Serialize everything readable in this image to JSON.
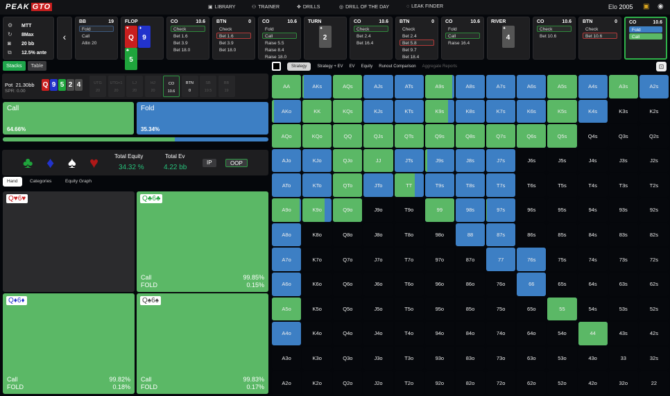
{
  "header": {
    "logo_a": "PEAK",
    "logo_b": "GTO",
    "nav": [
      "LIBRARY",
      "TRAINER",
      "DRILLS",
      "DRILL OF THE DAY",
      "LEAK FINDER"
    ],
    "elo_label": "Elo",
    "elo_value": "2005"
  },
  "game_info": [
    "MTT",
    "8Max",
    "20 bb",
    "12.5% ante"
  ],
  "history": [
    {
      "pos": "BB",
      "stack": "19",
      "opts": [
        [
          "Fold",
          "sb"
        ],
        [
          "Call",
          ""
        ],
        [
          "Allin 20",
          ""
        ]
      ]
    },
    {
      "street": "FLOP",
      "cards": [
        [
          "Q",
          "♥",
          "#c81e1e"
        ],
        [
          "9",
          "♦",
          "#2233cc"
        ],
        [
          "5",
          "♣",
          "#1fa53c"
        ]
      ]
    },
    {
      "pos": "CO",
      "stack": "10.6",
      "opts": [
        [
          "Check",
          "sg"
        ],
        [
          "Bet 1.6",
          ""
        ],
        [
          "Bet 3.9",
          ""
        ],
        [
          "Bet 18.0",
          ""
        ]
      ]
    },
    {
      "pos": "BTN",
      "stack": "0",
      "opts": [
        [
          "Check",
          ""
        ],
        [
          "Bet 1.6",
          "sr"
        ],
        [
          "Bet 3.9",
          ""
        ],
        [
          "Bet 18.0",
          ""
        ]
      ]
    },
    {
      "pos": "CO",
      "stack": "10.6",
      "opts": [
        [
          "Fold",
          ""
        ],
        [
          "Call",
          "sg"
        ],
        [
          "Raise 5.5",
          ""
        ],
        [
          "Raise 8.4",
          ""
        ],
        [
          "Raise 18.0",
          ""
        ]
      ]
    },
    {
      "street": "TURN",
      "cards": [
        [
          "2",
          "♠",
          "#555"
        ]
      ]
    },
    {
      "pos": "CO",
      "stack": "10.6",
      "opts": [
        [
          "Check",
          "sg"
        ],
        [
          "Bet 2.4",
          ""
        ],
        [
          "Bet 16.4",
          ""
        ]
      ]
    },
    {
      "pos": "BTN",
      "stack": "0",
      "opts": [
        [
          "Check",
          ""
        ],
        [
          "Bet 2.4",
          ""
        ],
        [
          "Bet 5.8",
          "sr"
        ],
        [
          "Bet 9.7",
          ""
        ],
        [
          "Bet 18.4",
          ""
        ]
      ]
    },
    {
      "pos": "CO",
      "stack": "10.6",
      "opts": [
        [
          "Fold",
          ""
        ],
        [
          "Call",
          "sg"
        ],
        [
          "Raise 16.4",
          ""
        ]
      ]
    },
    {
      "street": "RIVER",
      "cards": [
        [
          "4",
          "♠",
          "#555"
        ]
      ]
    },
    {
      "pos": "CO",
      "stack": "10.6",
      "opts": [
        [
          "Check",
          "sg"
        ],
        [
          "Bet 10.6",
          ""
        ]
      ]
    },
    {
      "pos": "BTN",
      "stack": "0",
      "opts": [
        [
          "Check",
          ""
        ],
        [
          "Bet 10.6",
          "sr"
        ]
      ]
    },
    {
      "pos": "CO",
      "stack": "10.6",
      "active": true,
      "opts": [
        [
          "Fold",
          "fb"
        ],
        [
          "Call",
          "fg"
        ]
      ]
    }
  ],
  "left": {
    "tabs": [
      "Stacks",
      "Table"
    ],
    "pot_label": "Pot",
    "pot_value": "21.30bb",
    "spr": "SPR: 0.00",
    "board": [
      [
        "Q",
        "#c81e1e"
      ],
      [
        "9",
        "#2233cc"
      ],
      [
        "5",
        "#1fa53c"
      ],
      [
        "2",
        "#4a4a4a"
      ],
      [
        "4",
        "#4a4a4a"
      ]
    ],
    "seats": [
      [
        "UTG",
        "20"
      ],
      [
        "UTG+1",
        "20"
      ],
      [
        "LJ",
        "20"
      ],
      [
        "HJ",
        "20"
      ],
      [
        "CO",
        "10.6"
      ],
      [
        "BTN",
        "0"
      ],
      [
        "SB",
        "19.5"
      ],
      [
        "BB",
        "19"
      ]
    ],
    "call_label": "Call",
    "call_pct": "64.66%",
    "fold_label": "Fold",
    "fold_pct": "35.34%",
    "call_fraction": 0.6466,
    "equity_label": "Total Equity",
    "equity_value": "34.32 %",
    "ev_label": "Total Ev",
    "ev_value": "4.22 bb",
    "ip": "IP",
    "oop": "OOP",
    "hand_tabs": [
      "Hand",
      "Categories",
      "Equity Graph"
    ],
    "hands": [
      {
        "q": "Q",
        "s": "♥",
        "six": "6",
        "color": "#c81e1e",
        "combo": false
      },
      {
        "q": "Q",
        "s": "♣",
        "six": "6",
        "color": "#1fa53c",
        "combo": true,
        "a1": "Call",
        "v1": "99.85%",
        "a2": "FOLD",
        "v2": "0.15%"
      },
      {
        "q": "Q",
        "s": "♦",
        "six": "6",
        "color": "#2233cc",
        "combo": true,
        "a1": "Call",
        "v1": "99.82%",
        "a2": "FOLD",
        "v2": "0.18%"
      },
      {
        "q": "Q",
        "s": "♠",
        "six": "6",
        "color": "#444",
        "combo": true,
        "a1": "Call",
        "v1": "99.83%",
        "a2": "FOLD",
        "v2": "0.17%"
      }
    ]
  },
  "strategy_tabs": [
    "Strategy",
    "Strategy + EV",
    "EV",
    "Equity",
    "Runout Comparison",
    "Aggregate Reports"
  ],
  "colors": {
    "call": "#5bb866",
    "fold": "#3d7fc4"
  },
  "matrix": {
    "labels": [
      [
        "AA",
        "AKs",
        "AQs",
        "AJs",
        "ATs",
        "A9s",
        "A8s",
        "A7s",
        "A6s",
        "A5s",
        "A4s",
        "A3s",
        "A2s"
      ],
      [
        "AKo",
        "KK",
        "KQs",
        "KJs",
        "KTs",
        "K9s",
        "K8s",
        "K7s",
        "K6s",
        "K5s",
        "K4s",
        "K3s",
        "K2s"
      ],
      [
        "AQo",
        "KQo",
        "QQ",
        "QJs",
        "QTs",
        "Q9s",
        "Q8s",
        "Q7s",
        "Q6s",
        "Q5s",
        "Q4s",
        "Q3s",
        "Q2s"
      ],
      [
        "AJo",
        "KJo",
        "QJo",
        "JJ",
        "JTs",
        "J9s",
        "J8s",
        "J7s",
        "J6s",
        "J5s",
        "J4s",
        "J3s",
        "J2s"
      ],
      [
        "ATo",
        "KTo",
        "QTo",
        "JTo",
        "TT",
        "T9s",
        "T8s",
        "T7s",
        "T6s",
        "T5s",
        "T4s",
        "T3s",
        "T2s"
      ],
      [
        "A9o",
        "K9o",
        "Q9o",
        "J9o",
        "T9o",
        "99",
        "98s",
        "97s",
        "96s",
        "95s",
        "94s",
        "93s",
        "92s"
      ],
      [
        "A8o",
        "K8o",
        "Q8o",
        "J8o",
        "T8o",
        "98o",
        "88",
        "87s",
        "86s",
        "85s",
        "84s",
        "83s",
        "82s"
      ],
      [
        "A7o",
        "K7o",
        "Q7o",
        "J7o",
        "T7o",
        "97o",
        "87o",
        "77",
        "76s",
        "75s",
        "74s",
        "73s",
        "72s"
      ],
      [
        "A6o",
        "K6o",
        "Q6o",
        "J6o",
        "T6o",
        "96o",
        "86o",
        "76o",
        "66",
        "65s",
        "64s",
        "63s",
        "62s"
      ],
      [
        "A5o",
        "K5o",
        "Q5o",
        "J5o",
        "T5o",
        "95o",
        "85o",
        "75o",
        "65o",
        "55",
        "54s",
        "53s",
        "52s"
      ],
      [
        "A4o",
        "K4o",
        "Q4o",
        "J4o",
        "T4o",
        "94o",
        "84o",
        "74o",
        "64o",
        "54o",
        "44",
        "43s",
        "42s"
      ],
      [
        "A3o",
        "K3o",
        "Q3o",
        "J3o",
        "T3o",
        "93o",
        "83o",
        "73o",
        "63o",
        "53o",
        "43o",
        "33",
        "32s"
      ],
      [
        "A2o",
        "K2o",
        "Q2o",
        "J2o",
        "T2o",
        "92o",
        "82o",
        "72o",
        "62o",
        "52o",
        "42o",
        "32o",
        "22"
      ]
    ],
    "call_freq": [
      [
        1,
        0.05,
        1,
        0,
        0,
        0.92,
        0,
        0,
        0,
        1,
        0,
        1,
        0
      ],
      [
        0.08,
        1,
        1,
        0,
        0,
        0.8,
        0,
        0,
        0,
        1,
        0,
        null,
        null
      ],
      [
        1,
        1,
        1,
        1,
        1,
        1,
        1,
        1,
        1,
        1,
        null,
        null,
        null
      ],
      [
        0,
        0,
        1,
        1,
        0,
        0.08,
        0,
        0,
        null,
        null,
        null,
        null,
        null
      ],
      [
        0,
        0,
        1,
        0,
        0.7,
        0,
        0,
        0,
        null,
        null,
        null,
        null,
        null
      ],
      [
        0.96,
        0.75,
        1,
        null,
        null,
        1,
        0,
        0.02,
        null,
        null,
        null,
        null,
        null
      ],
      [
        0,
        null,
        null,
        null,
        null,
        null,
        0,
        0,
        null,
        null,
        null,
        null,
        null
      ],
      [
        0,
        null,
        null,
        null,
        null,
        null,
        null,
        0,
        0,
        null,
        null,
        null,
        null
      ],
      [
        0,
        null,
        null,
        null,
        null,
        null,
        null,
        null,
        0,
        null,
        null,
        null,
        null
      ],
      [
        1,
        null,
        null,
        null,
        null,
        null,
        null,
        null,
        null,
        1,
        null,
        null,
        null
      ],
      [
        0,
        null,
        null,
        null,
        null,
        null,
        null,
        null,
        null,
        null,
        1,
        null,
        null
      ],
      [
        null,
        null,
        null,
        null,
        null,
        null,
        null,
        null,
        null,
        null,
        null,
        null,
        null
      ],
      [
        null,
        null,
        null,
        null,
        null,
        null,
        null,
        null,
        null,
        null,
        null,
        null,
        null
      ]
    ]
  }
}
